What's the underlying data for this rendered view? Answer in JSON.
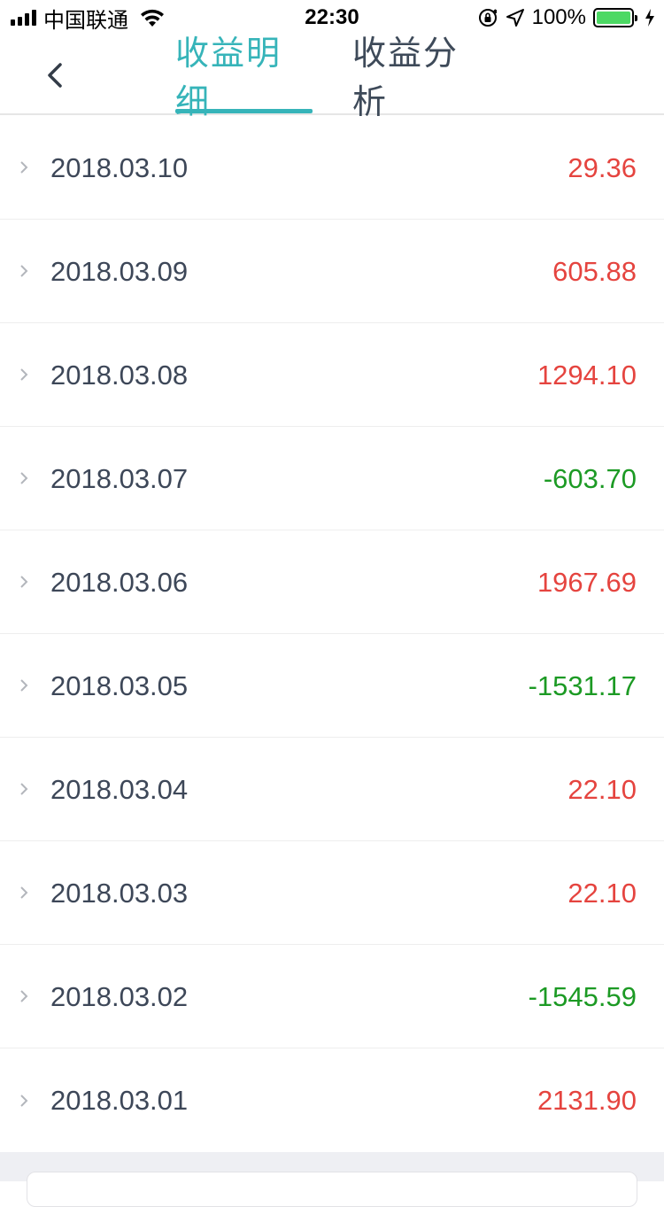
{
  "status_bar": {
    "carrier": "中国联通",
    "time": "22:30",
    "battery": "100%",
    "icons": [
      "signal-icon",
      "wifi-icon",
      "orientation-lock-icon",
      "location-icon",
      "battery-icon",
      "charging-icon"
    ]
  },
  "nav": {
    "back_icon": "back-chevron-icon",
    "tabs": [
      {
        "label": "收益明细",
        "active": true
      },
      {
        "label": "收益分析",
        "active": false
      }
    ],
    "accent_color": "#36b4b9"
  },
  "records": [
    {
      "date": "2018.03.10",
      "amount": "29.36",
      "sign": "pos"
    },
    {
      "date": "2018.03.09",
      "amount": "605.88",
      "sign": "pos"
    },
    {
      "date": "2018.03.08",
      "amount": "1294.10",
      "sign": "pos"
    },
    {
      "date": "2018.03.07",
      "amount": "-603.70",
      "sign": "neg"
    },
    {
      "date": "2018.03.06",
      "amount": "1967.69",
      "sign": "pos"
    },
    {
      "date": "2018.03.05",
      "amount": "-1531.17",
      "sign": "neg"
    },
    {
      "date": "2018.03.04",
      "amount": "22.10",
      "sign": "pos"
    },
    {
      "date": "2018.03.03",
      "amount": "22.10",
      "sign": "pos"
    },
    {
      "date": "2018.03.02",
      "amount": "-1545.59",
      "sign": "neg"
    },
    {
      "date": "2018.03.01",
      "amount": "2131.90",
      "sign": "pos"
    }
  ],
  "colors": {
    "positive": "#e5443f",
    "negative": "#1c9a24"
  }
}
